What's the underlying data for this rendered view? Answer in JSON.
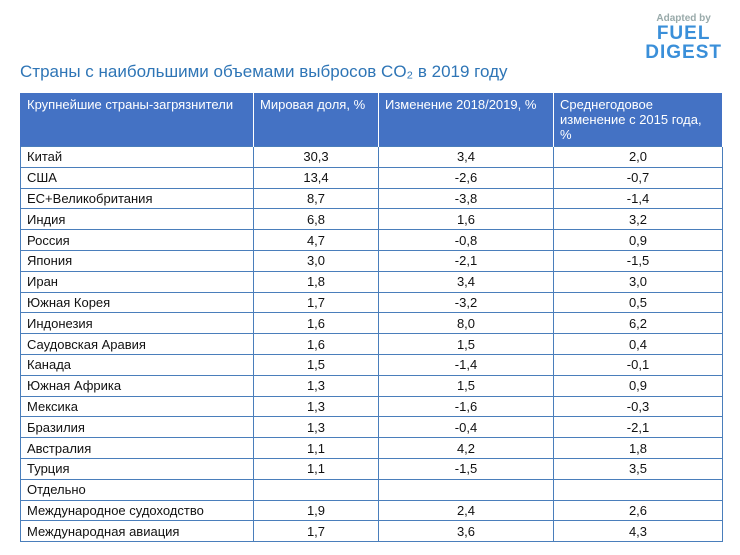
{
  "logo": {
    "adapted": "Adapted by",
    "brand1": "FUEL",
    "brand2": "DIGEST"
  },
  "header": {
    "title": "Страны с наибольшими объемами выбросов CO₂ в 2019 году"
  },
  "table": {
    "columns": [
      "Крупнейшие страны-загрязнители",
      "Мировая доля, %",
      "Изменение 2018/2019, %",
      "Среднегодовое изменение с 2015 года, %"
    ],
    "rows": [
      [
        "Китай",
        "30,3",
        "3,4",
        "2,0"
      ],
      [
        "США",
        "13,4",
        "-2,6",
        "-0,7"
      ],
      [
        "ЕС+Великобритания",
        "8,7",
        "-3,8",
        "-1,4"
      ],
      [
        "Индия",
        "6,8",
        "1,6",
        "3,2"
      ],
      [
        "Россия",
        "4,7",
        "-0,8",
        "0,9"
      ],
      [
        "Япония",
        "3,0",
        "-2,1",
        "-1,5"
      ],
      [
        "Иран",
        "1,8",
        "3,4",
        "3,0"
      ],
      [
        "Южная Корея",
        "1,7",
        "-3,2",
        "0,5"
      ],
      [
        "Индонезия",
        "1,6",
        "8,0",
        "6,2"
      ],
      [
        "Саудовская Аравия",
        "1,6",
        "1,5",
        "0,4"
      ],
      [
        "Канада",
        "1,5",
        "-1,4",
        "-0,1"
      ],
      [
        "Южная Африка",
        "1,3",
        "1,5",
        "0,9"
      ],
      [
        "Мексика",
        "1,3",
        "-1,6",
        "-0,3"
      ],
      [
        "Бразилия",
        "1,3",
        "-0,4",
        "-2,1"
      ],
      [
        "Австралия",
        "1,1",
        "4,2",
        "1,8"
      ],
      [
        "Турция",
        "1,1",
        "-1,5",
        "3,5"
      ],
      [
        "Отдельно"
      ],
      [
        "Международное судоходство",
        "1,9",
        "2,4",
        "2,6"
      ],
      [
        "Международная авиация",
        "1,7",
        "3,6",
        "4,3"
      ]
    ]
  }
}
